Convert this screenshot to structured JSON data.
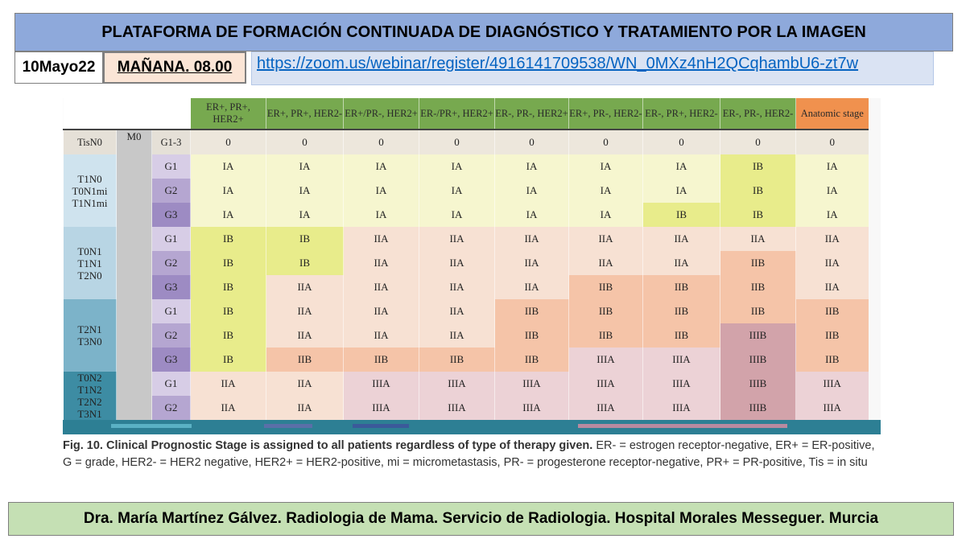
{
  "header": {
    "title": "PLATAFORMA DE FORMACIÓN CONTINUADA DE DIAGNÓSTICO Y TRATAMIENTO POR LA IMAGEN",
    "date": "10Mayo22",
    "session": "MAÑANA. 08.00",
    "link": "https://zoom.us/webinar/register/4916141709538/WN_0MXz4nH2QCqhambU6-zt7w"
  },
  "table": {
    "columns": [
      "ER+, PR+, HER2+",
      "ER+, PR+, HER2-",
      "ER+/PR-, HER2+",
      "ER-/PR+, HER2+",
      "ER-, PR-, HER2+",
      "ER+, PR-, HER2-",
      "ER-, PR+, HER2-",
      "ER-, PR-, HER2-",
      "Anatomic stage"
    ],
    "tis_row": {
      "t": "TisN0",
      "m": "M0",
      "g": "G1-3",
      "values": [
        "0",
        "0",
        "0",
        "0",
        "0",
        "0",
        "0",
        "0",
        "0"
      ]
    },
    "groups": [
      {
        "label": "T1N0 T0N1mi T1N1mi",
        "rows": [
          {
            "g": "G1",
            "values": [
              "IA",
              "IA",
              "IA",
              "IA",
              "IA",
              "IA",
              "IA",
              "IB",
              "IA"
            ]
          },
          {
            "g": "G2",
            "values": [
              "IA",
              "IA",
              "IA",
              "IA",
              "IA",
              "IA",
              "IA",
              "IB",
              "IA"
            ]
          },
          {
            "g": "G3",
            "values": [
              "IA",
              "IA",
              "IA",
              "IA",
              "IA",
              "IA",
              "IB",
              "IB",
              "IA"
            ]
          }
        ]
      },
      {
        "label": "T0N1 T1N1 T2N0",
        "rows": [
          {
            "g": "G1",
            "values": [
              "IB",
              "IB",
              "IIA",
              "IIA",
              "IIA",
              "IIA",
              "IIA",
              "IIA",
              "IIA"
            ]
          },
          {
            "g": "G2",
            "values": [
              "IB",
              "IB",
              "IIA",
              "IIA",
              "IIA",
              "IIA",
              "IIA",
              "IIB",
              "IIA"
            ]
          },
          {
            "g": "G3",
            "values": [
              "IB",
              "IIA",
              "IIA",
              "IIA",
              "IIA",
              "IIB",
              "IIB",
              "IIB",
              "IIA"
            ]
          }
        ]
      },
      {
        "label": "T2N1 T3N0",
        "rows": [
          {
            "g": "G1",
            "values": [
              "IB",
              "IIA",
              "IIA",
              "IIA",
              "IIB",
              "IIB",
              "IIB",
              "IIB",
              "IIB"
            ]
          },
          {
            "g": "G2",
            "values": [
              "IB",
              "IIA",
              "IIA",
              "IIA",
              "IIB",
              "IIB",
              "IIB",
              "IIIB",
              "IIB"
            ]
          },
          {
            "g": "G3",
            "values": [
              "IB",
              "IIB",
              "IIB",
              "IIB",
              "IIB",
              "IIIA",
              "IIIA",
              "IIIB",
              "IIB"
            ]
          }
        ]
      },
      {
        "label": "T0N2 T1N2 T2N2 T3N1",
        "rows": [
          {
            "g": "G1",
            "values": [
              "IIA",
              "IIA",
              "IIIA",
              "IIIA",
              "IIIA",
              "IIIA",
              "IIIA",
              "IIIB",
              "IIIA"
            ]
          },
          {
            "g": "G2",
            "values": [
              "IIA",
              "IIA",
              "IIIA",
              "IIIA",
              "IIIA",
              "IIIA",
              "IIIA",
              "IIIB",
              "IIIA"
            ]
          }
        ]
      }
    ]
  },
  "caption": {
    "bold": "Fig. 10. Clinical Prognostic Stage is assigned to all patients regardless of type of therapy given.",
    "rest": "ER- = estrogen receptor-negative, ER+ = ER-positive, G = grade, HER2- = HER2 negative, HER2+ = HER2-positive, mi = micrometastasis, PR- = progesterone receptor-negative, PR+ = PR-positive, Tis = in situ"
  },
  "footer": {
    "text": "Dra. María Martínez Gálvez. Radiologia de Mama. Servicio de Radiologia. Hospital Morales Messeguer. Murcia"
  }
}
